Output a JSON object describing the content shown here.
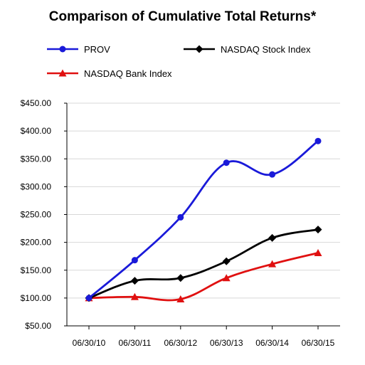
{
  "chart_data": {
    "type": "line",
    "title": "Comparison of Cumulative Total Returns*",
    "categories": [
      "06/30/10",
      "06/30/11",
      "06/30/12",
      "06/30/13",
      "06/30/14",
      "06/30/15"
    ],
    "ylim": [
      50,
      450
    ],
    "yticks": [
      50,
      100,
      150,
      200,
      250,
      300,
      350,
      400,
      450
    ],
    "ytick_labels": [
      "$50.00",
      "$100.00",
      "$150.00",
      "$200.00",
      "$250.00",
      "$300.00",
      "$350.00",
      "$400.00",
      "$450.00"
    ],
    "grid": true,
    "legend_position": "top",
    "series": [
      {
        "name": "PROV",
        "color": "#1a1ad9",
        "marker": "circle",
        "values": [
          100,
          168,
          245,
          343,
          322,
          382
        ]
      },
      {
        "name": "NASDAQ Stock Index",
        "color": "#000000",
        "marker": "diamond",
        "values": [
          100,
          131,
          136,
          166,
          208,
          223
        ]
      },
      {
        "name": "NASDAQ Bank Index",
        "color": "#e01010",
        "marker": "triangle",
        "values": [
          100,
          102,
          98,
          136,
          161,
          181
        ]
      }
    ]
  }
}
